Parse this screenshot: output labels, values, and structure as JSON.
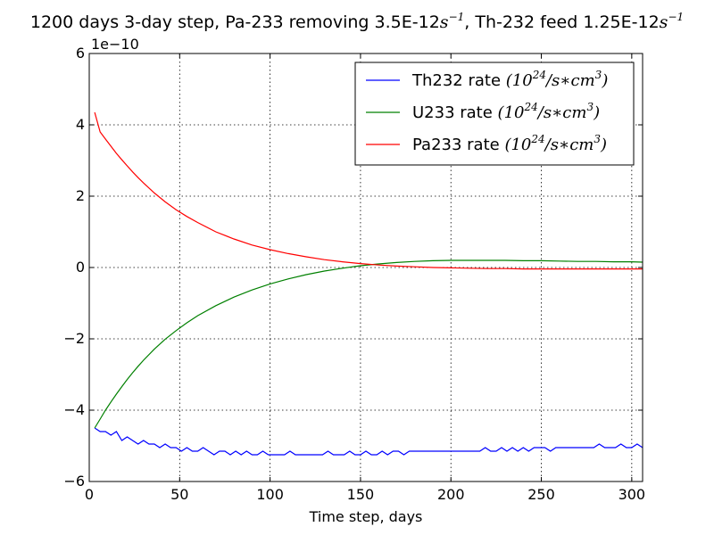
{
  "chart_data": {
    "type": "line",
    "title": {
      "part1": "1200 days 3-day step, Pa-233 removing 3.5E-12",
      "unit1": "s",
      "unit1_sup": "−1",
      "part2": ", Th-232 feed 1.25E-12",
      "unit2": "s",
      "unit2_sup": "−1"
    },
    "xlabel": "Time step, days",
    "ylabel": "",
    "y_scale_label": "1e−10",
    "xlim": [
      0,
      306
    ],
    "ylim": [
      -6,
      6
    ],
    "x_ticks": [
      0,
      50,
      100,
      150,
      200,
      250,
      300
    ],
    "y_ticks": [
      -6,
      -4,
      -2,
      0,
      2,
      4,
      6
    ],
    "y_tick_labels": [
      "−6",
      "−4",
      "−2",
      "0",
      "2",
      "4",
      "6"
    ],
    "grid": true,
    "legend_position": "top-right",
    "series": [
      {
        "name": "Th232 rate",
        "legend_math": "(10",
        "legend_sup": "24",
        "legend_math2": "/s∗cm",
        "legend_sup2": "3",
        "legend_math3": ")",
        "color": "#0000ff",
        "x": [
          3,
          6,
          9,
          12,
          15,
          18,
          21,
          24,
          27,
          30,
          33,
          36,
          39,
          42,
          45,
          48,
          51,
          54,
          57,
          60,
          63,
          66,
          69,
          72,
          75,
          78,
          81,
          84,
          87,
          90,
          93,
          96,
          99,
          102,
          105,
          108,
          111,
          114,
          117,
          120,
          123,
          126,
          129,
          132,
          135,
          138,
          141,
          144,
          147,
          150,
          153,
          156,
          159,
          162,
          165,
          168,
          171,
          174,
          177,
          180,
          183,
          186,
          189,
          192,
          195,
          198,
          201,
          204,
          207,
          210,
          213,
          216,
          219,
          222,
          225,
          228,
          231,
          234,
          237,
          240,
          243,
          246,
          249,
          252,
          255,
          258,
          261,
          264,
          267,
          270,
          273,
          276,
          279,
          282,
          285,
          288,
          291,
          294,
          297,
          300,
          303,
          306
        ],
        "y": [
          -4.5,
          -4.6,
          -4.6,
          -4.7,
          -4.6,
          -4.85,
          -4.75,
          -4.85,
          -4.95,
          -4.85,
          -4.95,
          -4.95,
          -5.05,
          -4.95,
          -5.05,
          -5.05,
          -5.15,
          -5.05,
          -5.15,
          -5.15,
          -5.05,
          -5.15,
          -5.25,
          -5.15,
          -5.15,
          -5.25,
          -5.15,
          -5.25,
          -5.15,
          -5.25,
          -5.25,
          -5.15,
          -5.25,
          -5.25,
          -5.25,
          -5.25,
          -5.15,
          -5.25,
          -5.25,
          -5.25,
          -5.25,
          -5.25,
          -5.25,
          -5.15,
          -5.25,
          -5.25,
          -5.25,
          -5.15,
          -5.25,
          -5.25,
          -5.15,
          -5.25,
          -5.25,
          -5.15,
          -5.25,
          -5.15,
          -5.15,
          -5.25,
          -5.15,
          -5.15,
          -5.15,
          -5.15,
          -5.15,
          -5.15,
          -5.15,
          -5.15,
          -5.15,
          -5.15,
          -5.15,
          -5.15,
          -5.15,
          -5.15,
          -5.05,
          -5.15,
          -5.15,
          -5.05,
          -5.15,
          -5.05,
          -5.15,
          -5.05,
          -5.15,
          -5.05,
          -5.05,
          -5.05,
          -5.15,
          -5.05,
          -5.05,
          -5.05,
          -5.05,
          -5.05,
          -5.05,
          -5.05,
          -5.05,
          -4.95,
          -5.05,
          -5.05,
          -5.05,
          -4.95,
          -5.05,
          -5.05,
          -4.95,
          -5.05
        ]
      },
      {
        "name": "U233 rate",
        "legend_math": "(10",
        "legend_sup": "24",
        "legend_math2": "/s∗cm",
        "legend_sup2": "3",
        "legend_math3": ")",
        "color": "#008000",
        "x": [
          3,
          6,
          9,
          12,
          15,
          18,
          21,
          24,
          27,
          30,
          36,
          42,
          48,
          54,
          60,
          70,
          80,
          90,
          100,
          110,
          120,
          130,
          140,
          150,
          160,
          170,
          180,
          190,
          200,
          210,
          220,
          230,
          240,
          250,
          260,
          270,
          280,
          290,
          300,
          306
        ],
        "y": [
          -4.5,
          -4.25,
          -4.0,
          -3.77,
          -3.55,
          -3.34,
          -3.14,
          -2.95,
          -2.77,
          -2.6,
          -2.29,
          -2.01,
          -1.77,
          -1.55,
          -1.35,
          -1.07,
          -0.83,
          -0.63,
          -0.46,
          -0.32,
          -0.2,
          -0.1,
          -0.02,
          0.05,
          0.1,
          0.14,
          0.17,
          0.19,
          0.2,
          0.2,
          0.2,
          0.2,
          0.19,
          0.19,
          0.18,
          0.17,
          0.17,
          0.16,
          0.16,
          0.15
        ]
      },
      {
        "name": "Pa233 rate",
        "legend_math": "(10",
        "legend_sup": "24",
        "legend_math2": "/s∗cm",
        "legend_sup2": "3",
        "legend_math3": ")",
        "color": "#ff0000",
        "x": [
          3,
          6,
          9,
          12,
          15,
          18,
          21,
          24,
          27,
          30,
          36,
          42,
          48,
          54,
          60,
          70,
          80,
          90,
          100,
          110,
          120,
          130,
          140,
          150,
          160,
          170,
          180,
          190,
          200,
          210,
          220,
          230,
          240,
          250,
          260,
          270,
          280,
          290,
          300,
          306
        ],
        "y": [
          4.35,
          3.8,
          3.6,
          3.4,
          3.2,
          3.02,
          2.85,
          2.68,
          2.52,
          2.37,
          2.09,
          1.84,
          1.62,
          1.43,
          1.26,
          1.0,
          0.8,
          0.63,
          0.5,
          0.39,
          0.3,
          0.22,
          0.16,
          0.11,
          0.07,
          0.04,
          0.02,
          0.0,
          -0.01,
          -0.02,
          -0.03,
          -0.03,
          -0.04,
          -0.04,
          -0.04,
          -0.04,
          -0.04,
          -0.04,
          -0.04,
          -0.04
        ]
      }
    ]
  }
}
